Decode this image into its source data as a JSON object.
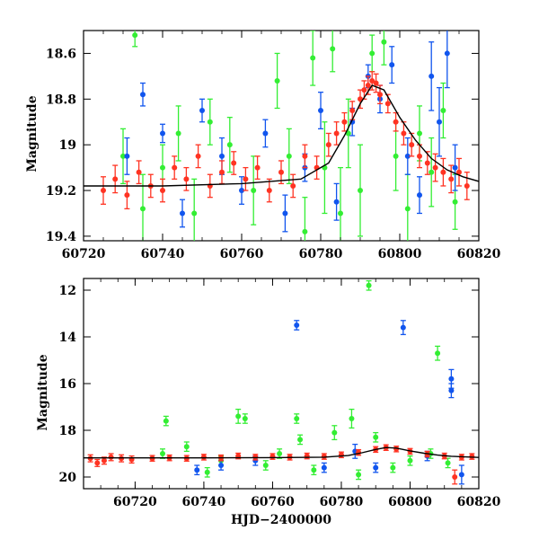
{
  "chart_data": [
    {
      "type": "scatter",
      "title": "",
      "xlabel": "",
      "ylabel": "Magnitude",
      "xlim": [
        60720,
        60820
      ],
      "ylim": [
        19.42,
        18.5
      ],
      "y_inverted": true,
      "x_ticks": [
        "60720",
        "60740",
        "60760",
        "60780",
        "60800",
        "60820"
      ],
      "y_ticks": [
        "18.6",
        "18.8",
        "19",
        "19.2",
        "19.4"
      ],
      "series": [
        {
          "color": "#33ee33",
          "points": [
            {
              "x": 60730,
              "y": 19.05,
              "err": 0.12
            },
            {
              "x": 60733,
              "y": 18.52,
              "err": 0.05
            },
            {
              "x": 60735,
              "y": 19.28,
              "err": 0.15
            },
            {
              "x": 60740,
              "y": 19.1,
              "err": 0.1
            },
            {
              "x": 60744,
              "y": 18.95,
              "err": 0.12
            },
            {
              "x": 60748,
              "y": 19.3,
              "err": 0.15
            },
            {
              "x": 60752,
              "y": 18.9,
              "err": 0.1
            },
            {
              "x": 60757,
              "y": 19.0,
              "err": 0.12
            },
            {
              "x": 60763,
              "y": 19.2,
              "err": 0.15
            },
            {
              "x": 60769,
              "y": 18.72,
              "err": 0.12
            },
            {
              "x": 60772,
              "y": 19.05,
              "err": 0.12
            },
            {
              "x": 60776,
              "y": 19.38,
              "err": 0.15
            },
            {
              "x": 60778,
              "y": 18.62,
              "err": 0.12
            },
            {
              "x": 60781,
              "y": 19.1,
              "err": 0.2
            },
            {
              "x": 60783,
              "y": 18.58,
              "err": 0.1
            },
            {
              "x": 60785,
              "y": 19.3,
              "err": 0.2
            },
            {
              "x": 60787,
              "y": 18.95,
              "err": 0.15
            },
            {
              "x": 60790,
              "y": 19.2,
              "err": 0.2
            },
            {
              "x": 60793,
              "y": 18.6,
              "err": 0.08
            },
            {
              "x": 60796,
              "y": 18.55,
              "err": 0.1
            },
            {
              "x": 60799,
              "y": 19.05,
              "err": 0.15
            },
            {
              "x": 60802,
              "y": 19.28,
              "err": 0.15
            },
            {
              "x": 60805,
              "y": 18.95,
              "err": 0.12
            },
            {
              "x": 60808,
              "y": 19.12,
              "err": 0.15
            },
            {
              "x": 60811,
              "y": 18.85,
              "err": 0.12
            },
            {
              "x": 60814,
              "y": 19.25,
              "err": 0.12
            }
          ]
        },
        {
          "color": "#1155ee",
          "points": [
            {
              "x": 60731,
              "y": 19.05,
              "err": 0.08
            },
            {
              "x": 60735,
              "y": 18.78,
              "err": 0.05
            },
            {
              "x": 60740,
              "y": 18.95,
              "err": 0.04
            },
            {
              "x": 60745,
              "y": 19.3,
              "err": 0.06
            },
            {
              "x": 60750,
              "y": 18.85,
              "err": 0.05
            },
            {
              "x": 60755,
              "y": 19.05,
              "err": 0.08
            },
            {
              "x": 60760,
              "y": 19.2,
              "err": 0.06
            },
            {
              "x": 60766,
              "y": 18.95,
              "err": 0.06
            },
            {
              "x": 60771,
              "y": 19.3,
              "err": 0.08
            },
            {
              "x": 60776,
              "y": 19.1,
              "err": 0.06
            },
            {
              "x": 60780,
              "y": 18.85,
              "err": 0.08
            },
            {
              "x": 60784,
              "y": 19.25,
              "err": 0.08
            },
            {
              "x": 60788,
              "y": 18.9,
              "err": 0.06
            },
            {
              "x": 60792,
              "y": 18.7,
              "err": 0.05
            },
            {
              "x": 60795,
              "y": 18.8,
              "err": 0.06
            },
            {
              "x": 60798,
              "y": 18.65,
              "err": 0.08
            },
            {
              "x": 60802,
              "y": 19.05,
              "err": 0.08
            },
            {
              "x": 60805,
              "y": 19.22,
              "err": 0.08
            },
            {
              "x": 60808,
              "y": 18.7,
              "err": 0.15
            },
            {
              "x": 60810,
              "y": 18.9,
              "err": 0.15
            },
            {
              "x": 60812,
              "y": 18.6,
              "err": 0.15
            },
            {
              "x": 60814,
              "y": 19.1,
              "err": 0.1
            }
          ]
        },
        {
          "color": "#ff3322",
          "points": [
            {
              "x": 60725,
              "y": 19.2,
              "err": 0.06
            },
            {
              "x": 60728,
              "y": 19.15,
              "err": 0.06
            },
            {
              "x": 60731,
              "y": 19.22,
              "err": 0.06
            },
            {
              "x": 60734,
              "y": 19.12,
              "err": 0.05
            },
            {
              "x": 60737,
              "y": 19.18,
              "err": 0.05
            },
            {
              "x": 60740,
              "y": 19.2,
              "err": 0.05
            },
            {
              "x": 60743,
              "y": 19.1,
              "err": 0.05
            },
            {
              "x": 60746,
              "y": 19.15,
              "err": 0.05
            },
            {
              "x": 60749,
              "y": 19.05,
              "err": 0.05
            },
            {
              "x": 60752,
              "y": 19.18,
              "err": 0.05
            },
            {
              "x": 60755,
              "y": 19.12,
              "err": 0.05
            },
            {
              "x": 60758,
              "y": 19.08,
              "err": 0.05
            },
            {
              "x": 60761,
              "y": 19.15,
              "err": 0.05
            },
            {
              "x": 60764,
              "y": 19.1,
              "err": 0.05
            },
            {
              "x": 60767,
              "y": 19.2,
              "err": 0.05
            },
            {
              "x": 60770,
              "y": 19.12,
              "err": 0.05
            },
            {
              "x": 60773,
              "y": 19.18,
              "err": 0.05
            },
            {
              "x": 60776,
              "y": 19.05,
              "err": 0.05
            },
            {
              "x": 60779,
              "y": 19.1,
              "err": 0.05
            },
            {
              "x": 60782,
              "y": 19.0,
              "err": 0.05
            },
            {
              "x": 60784,
              "y": 18.95,
              "err": 0.05
            },
            {
              "x": 60786,
              "y": 18.9,
              "err": 0.04
            },
            {
              "x": 60788,
              "y": 18.85,
              "err": 0.04
            },
            {
              "x": 60790,
              "y": 18.8,
              "err": 0.04
            },
            {
              "x": 60791,
              "y": 18.76,
              "err": 0.04
            },
            {
              "x": 60792,
              "y": 18.74,
              "err": 0.04
            },
            {
              "x": 60793,
              "y": 18.72,
              "err": 0.04
            },
            {
              "x": 60794,
              "y": 18.73,
              "err": 0.04
            },
            {
              "x": 60795,
              "y": 18.78,
              "err": 0.04
            },
            {
              "x": 60797,
              "y": 18.82,
              "err": 0.04
            },
            {
              "x": 60799,
              "y": 18.9,
              "err": 0.04
            },
            {
              "x": 60801,
              "y": 18.95,
              "err": 0.05
            },
            {
              "x": 60803,
              "y": 19.0,
              "err": 0.05
            },
            {
              "x": 60805,
              "y": 19.05,
              "err": 0.05
            },
            {
              "x": 60807,
              "y": 19.08,
              "err": 0.05
            },
            {
              "x": 60809,
              "y": 19.1,
              "err": 0.06
            },
            {
              "x": 60811,
              "y": 19.12,
              "err": 0.06
            },
            {
              "x": 60813,
              "y": 19.15,
              "err": 0.06
            },
            {
              "x": 60815,
              "y": 19.12,
              "err": 0.06
            },
            {
              "x": 60817,
              "y": 19.18,
              "err": 0.06
            }
          ]
        }
      ],
      "model_curve": {
        "color": "#000000",
        "x": [
          60720,
          60740,
          60760,
          60775,
          60782,
          60786,
          60790,
          60793,
          60796,
          60800,
          60804,
          60808,
          60812,
          60816,
          60820
        ],
        "y": [
          19.18,
          19.18,
          19.17,
          19.15,
          19.08,
          18.96,
          18.82,
          18.74,
          18.76,
          18.88,
          18.98,
          19.06,
          19.11,
          19.14,
          19.16
        ]
      }
    },
    {
      "type": "scatter",
      "title": "",
      "xlabel": "HJD−2400000",
      "ylabel": "Magnitude",
      "xlim": [
        60705,
        60820
      ],
      "ylim": [
        20.5,
        11.5
      ],
      "y_inverted": true,
      "x_ticks": [
        "60720",
        "60740",
        "60760",
        "60780",
        "60800",
        "60820"
      ],
      "y_ticks": [
        "12",
        "14",
        "16",
        "18",
        "20"
      ],
      "series": [
        {
          "color": "#33ee33",
          "points": [
            {
              "x": 60729,
              "y": 17.6,
              "err": 0.2
            },
            {
              "x": 60728,
              "y": 19.0,
              "err": 0.2
            },
            {
              "x": 60735,
              "y": 18.7,
              "err": 0.2
            },
            {
              "x": 60741,
              "y": 19.8,
              "err": 0.2
            },
            {
              "x": 60745,
              "y": 19.3,
              "err": 0.2
            },
            {
              "x": 60750,
              "y": 17.4,
              "err": 0.3
            },
            {
              "x": 60752,
              "y": 17.5,
              "err": 0.2
            },
            {
              "x": 60758,
              "y": 19.5,
              "err": 0.2
            },
            {
              "x": 60762,
              "y": 19.0,
              "err": 0.2
            },
            {
              "x": 60767,
              "y": 17.5,
              "err": 0.2
            },
            {
              "x": 60768,
              "y": 18.4,
              "err": 0.2
            },
            {
              "x": 60772,
              "y": 19.7,
              "err": 0.2
            },
            {
              "x": 60778,
              "y": 18.1,
              "err": 0.3
            },
            {
              "x": 60783,
              "y": 17.5,
              "err": 0.4
            },
            {
              "x": 60785,
              "y": 19.9,
              "err": 0.2
            },
            {
              "x": 60788,
              "y": 11.8,
              "err": 0.2
            },
            {
              "x": 60790,
              "y": 18.3,
              "err": 0.2
            },
            {
              "x": 60795,
              "y": 19.6,
              "err": 0.2
            },
            {
              "x": 60800,
              "y": 19.3,
              "err": 0.2
            },
            {
              "x": 60806,
              "y": 19.0,
              "err": 0.2
            },
            {
              "x": 60808,
              "y": 14.7,
              "err": 0.3
            },
            {
              "x": 60811,
              "y": 19.4,
              "err": 0.2
            }
          ]
        },
        {
          "color": "#1155ee",
          "points": [
            {
              "x": 60738,
              "y": 19.7,
              "err": 0.2
            },
            {
              "x": 60745,
              "y": 19.5,
              "err": 0.2
            },
            {
              "x": 60755,
              "y": 19.3,
              "err": 0.2
            },
            {
              "x": 60767,
              "y": 13.5,
              "err": 0.2
            },
            {
              "x": 60775,
              "y": 19.6,
              "err": 0.2
            },
            {
              "x": 60784,
              "y": 18.9,
              "err": 0.3
            },
            {
              "x": 60790,
              "y": 19.6,
              "err": 0.2
            },
            {
              "x": 60798,
              "y": 13.6,
              "err": 0.3
            },
            {
              "x": 60805,
              "y": 19.1,
              "err": 0.2
            },
            {
              "x": 60812,
              "y": 15.8,
              "err": 0.4
            },
            {
              "x": 60812,
              "y": 16.3,
              "err": 0.3
            },
            {
              "x": 60815,
              "y": 19.9,
              "err": 0.4
            }
          ]
        },
        {
          "color": "#ff3322",
          "points": [
            {
              "x": 60707,
              "y": 19.2,
              "err": 0.15
            },
            {
              "x": 60709,
              "y": 19.4,
              "err": 0.15
            },
            {
              "x": 60711,
              "y": 19.3,
              "err": 0.15
            },
            {
              "x": 60713,
              "y": 19.15,
              "err": 0.15
            },
            {
              "x": 60716,
              "y": 19.2,
              "err": 0.15
            },
            {
              "x": 60719,
              "y": 19.25,
              "err": 0.15
            },
            {
              "x": 60725,
              "y": 19.2,
              "err": 0.12
            },
            {
              "x": 60730,
              "y": 19.18,
              "err": 0.12
            },
            {
              "x": 60735,
              "y": 19.2,
              "err": 0.12
            },
            {
              "x": 60740,
              "y": 19.15,
              "err": 0.12
            },
            {
              "x": 60745,
              "y": 19.18,
              "err": 0.12
            },
            {
              "x": 60750,
              "y": 19.1,
              "err": 0.12
            },
            {
              "x": 60755,
              "y": 19.15,
              "err": 0.12
            },
            {
              "x": 60760,
              "y": 19.12,
              "err": 0.12
            },
            {
              "x": 60765,
              "y": 19.15,
              "err": 0.12
            },
            {
              "x": 60770,
              "y": 19.1,
              "err": 0.12
            },
            {
              "x": 60775,
              "y": 19.12,
              "err": 0.12
            },
            {
              "x": 60780,
              "y": 19.05,
              "err": 0.12
            },
            {
              "x": 60785,
              "y": 18.95,
              "err": 0.12
            },
            {
              "x": 60790,
              "y": 18.82,
              "err": 0.12
            },
            {
              "x": 60793,
              "y": 18.74,
              "err": 0.12
            },
            {
              "x": 60796,
              "y": 18.8,
              "err": 0.12
            },
            {
              "x": 60800,
              "y": 18.9,
              "err": 0.12
            },
            {
              "x": 60805,
              "y": 19.02,
              "err": 0.12
            },
            {
              "x": 60810,
              "y": 19.1,
              "err": 0.12
            },
            {
              "x": 60813,
              "y": 20.0,
              "err": 0.3
            },
            {
              "x": 60815,
              "y": 19.15,
              "err": 0.12
            },
            {
              "x": 60818,
              "y": 19.12,
              "err": 0.12
            }
          ]
        }
      ],
      "model_curve": {
        "color": "#000000",
        "x": [
          60705,
          60740,
          60760,
          60775,
          60782,
          60786,
          60790,
          60793,
          60796,
          60800,
          60804,
          60808,
          60812,
          60816,
          60820
        ],
        "y": [
          19.18,
          19.18,
          19.17,
          19.15,
          19.08,
          18.96,
          18.82,
          18.74,
          18.76,
          18.88,
          18.98,
          19.06,
          19.11,
          19.14,
          19.16
        ]
      }
    }
  ]
}
